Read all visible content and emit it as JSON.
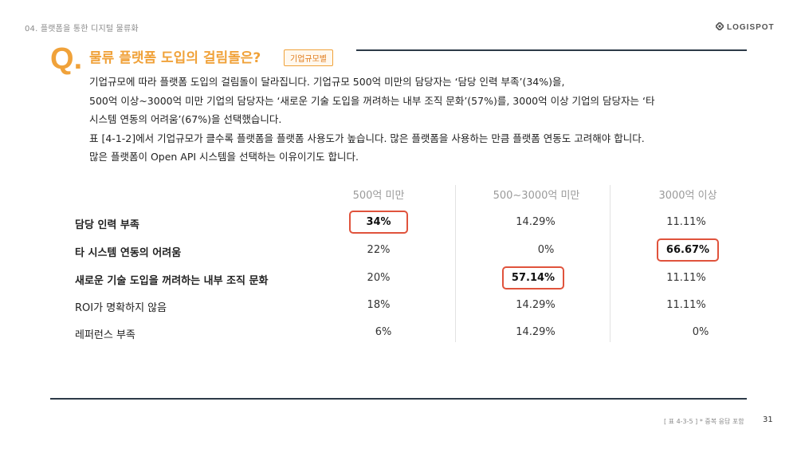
{
  "header": {
    "breadcrumb": "04. 플랫폼을 통한 디지털 물류화",
    "logo_text": "LOGISPOT",
    "logo_icon": "logispot-diamond-icon"
  },
  "question": {
    "letter": "Q",
    "dot": ".",
    "title": "물류 플랫폼 도입의 걸림돌은?",
    "badge": "기업규모별"
  },
  "description": [
    "기업규모에 따라 플랫폼 도입의 걸림돌이 달라집니다. 기업규모 500억 미만의 담당자는 ‘담당 인력 부족’(34%)을,",
    "500억 이상~3000억 미만 기업의 담당자는 ‘새로운 기술 도입을 꺼려하는 내부 조직 문화’(57%)를, 3000억 이상 기업의 담당자는 ‘타",
    "시스템 연동의 어려움’(67%)을 선택했습니다.",
    "표 [4-1-2]에서 기업규모가 클수록 플랫폼을 플랫폼 사용도가 높습니다. 많은 플랫폼을 사용하는 만큼 플랫폼 연동도 고려해야 합니다.",
    "많은 플랫폼이 Open API 시스템을 선택하는 이유이기도 합니다."
  ],
  "table": {
    "columns": [
      "500억 미만",
      "500~3000억 미만",
      "3000억 이상"
    ],
    "rows": [
      {
        "label": "담당 인력 부족",
        "values": [
          "34%",
          "14.29%",
          "11.11%"
        ]
      },
      {
        "label": "타 시스템 연동의 어려움",
        "values": [
          "22%",
          "0%",
          "66.67%"
        ]
      },
      {
        "label": "새로운 기술 도입을 꺼려하는 내부 조직 문화",
        "values": [
          "20%",
          "57.14%",
          "11.11%"
        ]
      },
      {
        "label": "ROI가 명확하지 않음",
        "values": [
          "18%",
          "14.29%",
          "11.11%"
        ]
      },
      {
        "label": "레퍼런스 부족",
        "values": [
          "6%",
          "14.29%",
          "0%"
        ]
      }
    ],
    "highlight_color": "#e0533c"
  },
  "footer": {
    "note": "[ 표 4-3-5 ] * 중복 응답 포함",
    "page": "31"
  },
  "colors": {
    "accent": "#f0a23a",
    "rule": "#2c3a47"
  }
}
